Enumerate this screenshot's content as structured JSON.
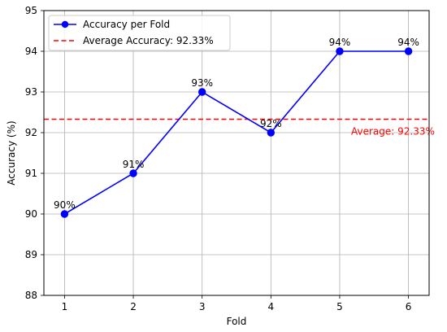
{
  "chart_data": {
    "type": "line",
    "title": "",
    "xlabel": "Fold",
    "ylabel": "Accuracy (%)",
    "x": [
      1,
      2,
      3,
      4,
      5,
      6
    ],
    "xlim": [
      0.7,
      6.3
    ],
    "ylim": [
      88,
      95
    ],
    "xticks": [
      1,
      2,
      3,
      4,
      5,
      6
    ],
    "yticks": [
      88,
      89,
      90,
      91,
      92,
      93,
      94,
      95
    ],
    "grid": true,
    "series": [
      {
        "name": "Accuracy per Fold",
        "values": [
          90,
          91,
          93,
          92,
          94,
          94
        ],
        "color": "#0000ff",
        "marker": "circle",
        "data_labels": [
          "90%",
          "91%",
          "93%",
          "92%",
          "94%",
          "94%"
        ]
      }
    ],
    "reference_line": {
      "name": "Average Accuracy: 92.33%",
      "value": 92.33,
      "color": "#ff0000",
      "style": "dashed",
      "annotation": "Average: 92.33%"
    },
    "legend": {
      "placement": "top-left",
      "entries": [
        "Accuracy per Fold",
        "Average Accuracy: 92.33%"
      ]
    }
  }
}
